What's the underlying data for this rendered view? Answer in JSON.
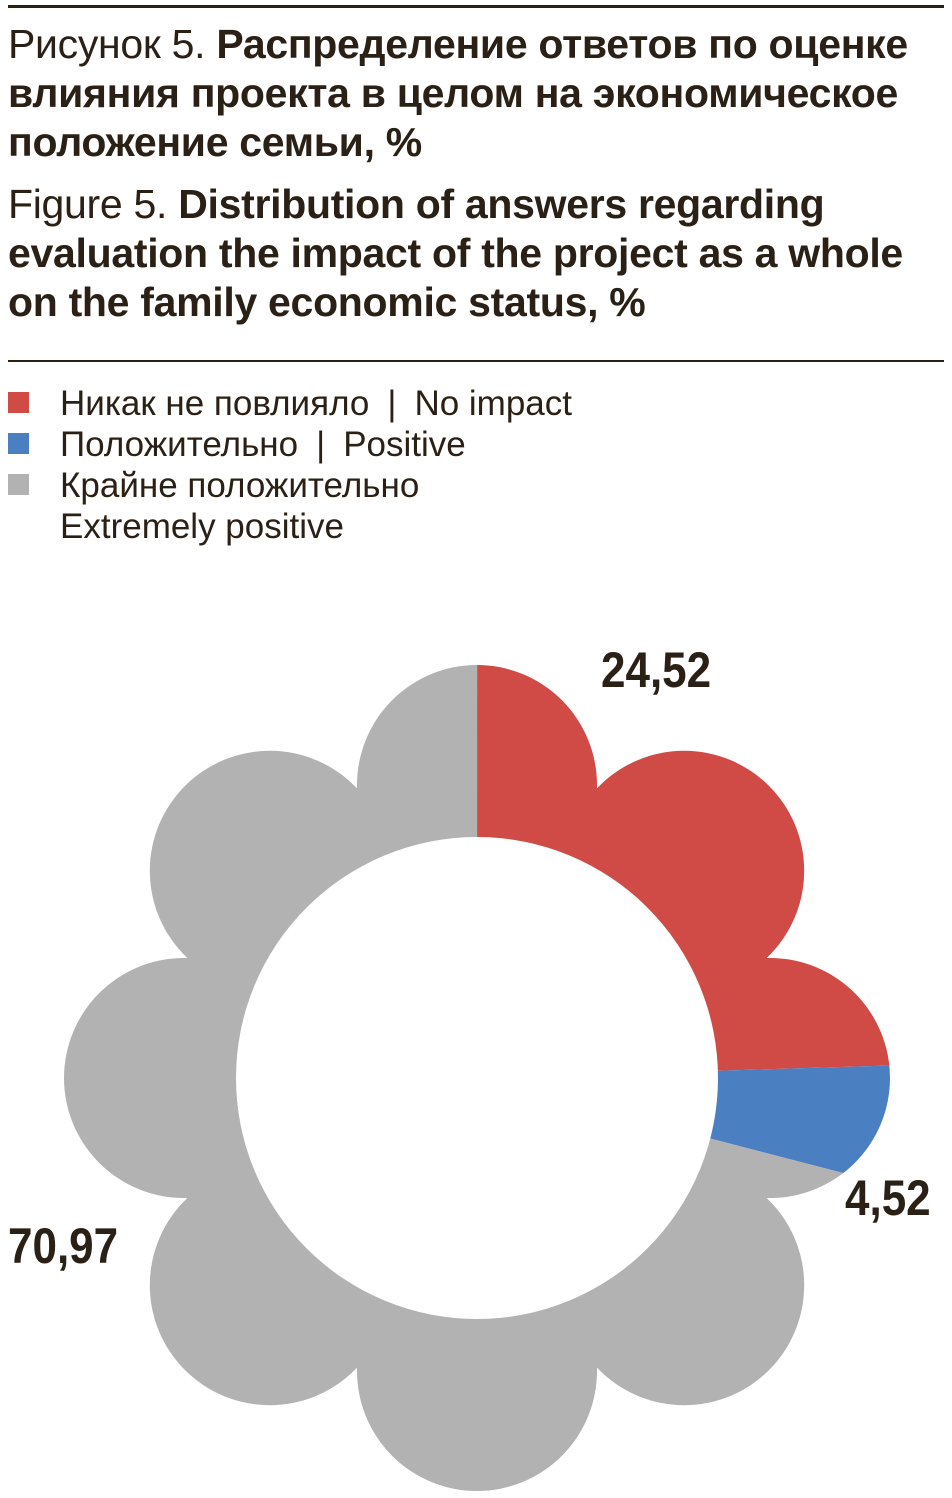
{
  "title": {
    "ru": {
      "prefix": "Рисунок 5. ",
      "line1_bold": "Распределение ответов по оценке",
      "line2": "влияния проекта в целом на экономическое",
      "line3": "положение семьи, %"
    },
    "en": {
      "prefix": "Figure 5. ",
      "line1_bold": "Distribution of answers regarding",
      "line2": "evaluation the impact of the project as a whole",
      "line3": "on the family economic status, %"
    }
  },
  "legend": {
    "separator": "|"
  },
  "chart_data": {
    "type": "pie",
    "style": "flower-donut",
    "unit": "%",
    "start_angle_deg": 0,
    "direction": "clockwise",
    "legend_position": "top-left",
    "slices": [
      {
        "id": "no-impact",
        "name_ru": "Никак не повлияло",
        "name_en": "No impact",
        "value": 24.52,
        "label": "24,52",
        "color": "#D04B45"
      },
      {
        "id": "positive",
        "name_ru": "Положительно",
        "name_en": "Positive",
        "value": 4.52,
        "label": "4,52",
        "color": "#4A80C2"
      },
      {
        "id": "extremely-positive",
        "name_ru": "Крайне положительно",
        "name_en": "Extremely positive",
        "value": 70.97,
        "label": "70,97",
        "color": "#B2B2B2"
      }
    ]
  }
}
